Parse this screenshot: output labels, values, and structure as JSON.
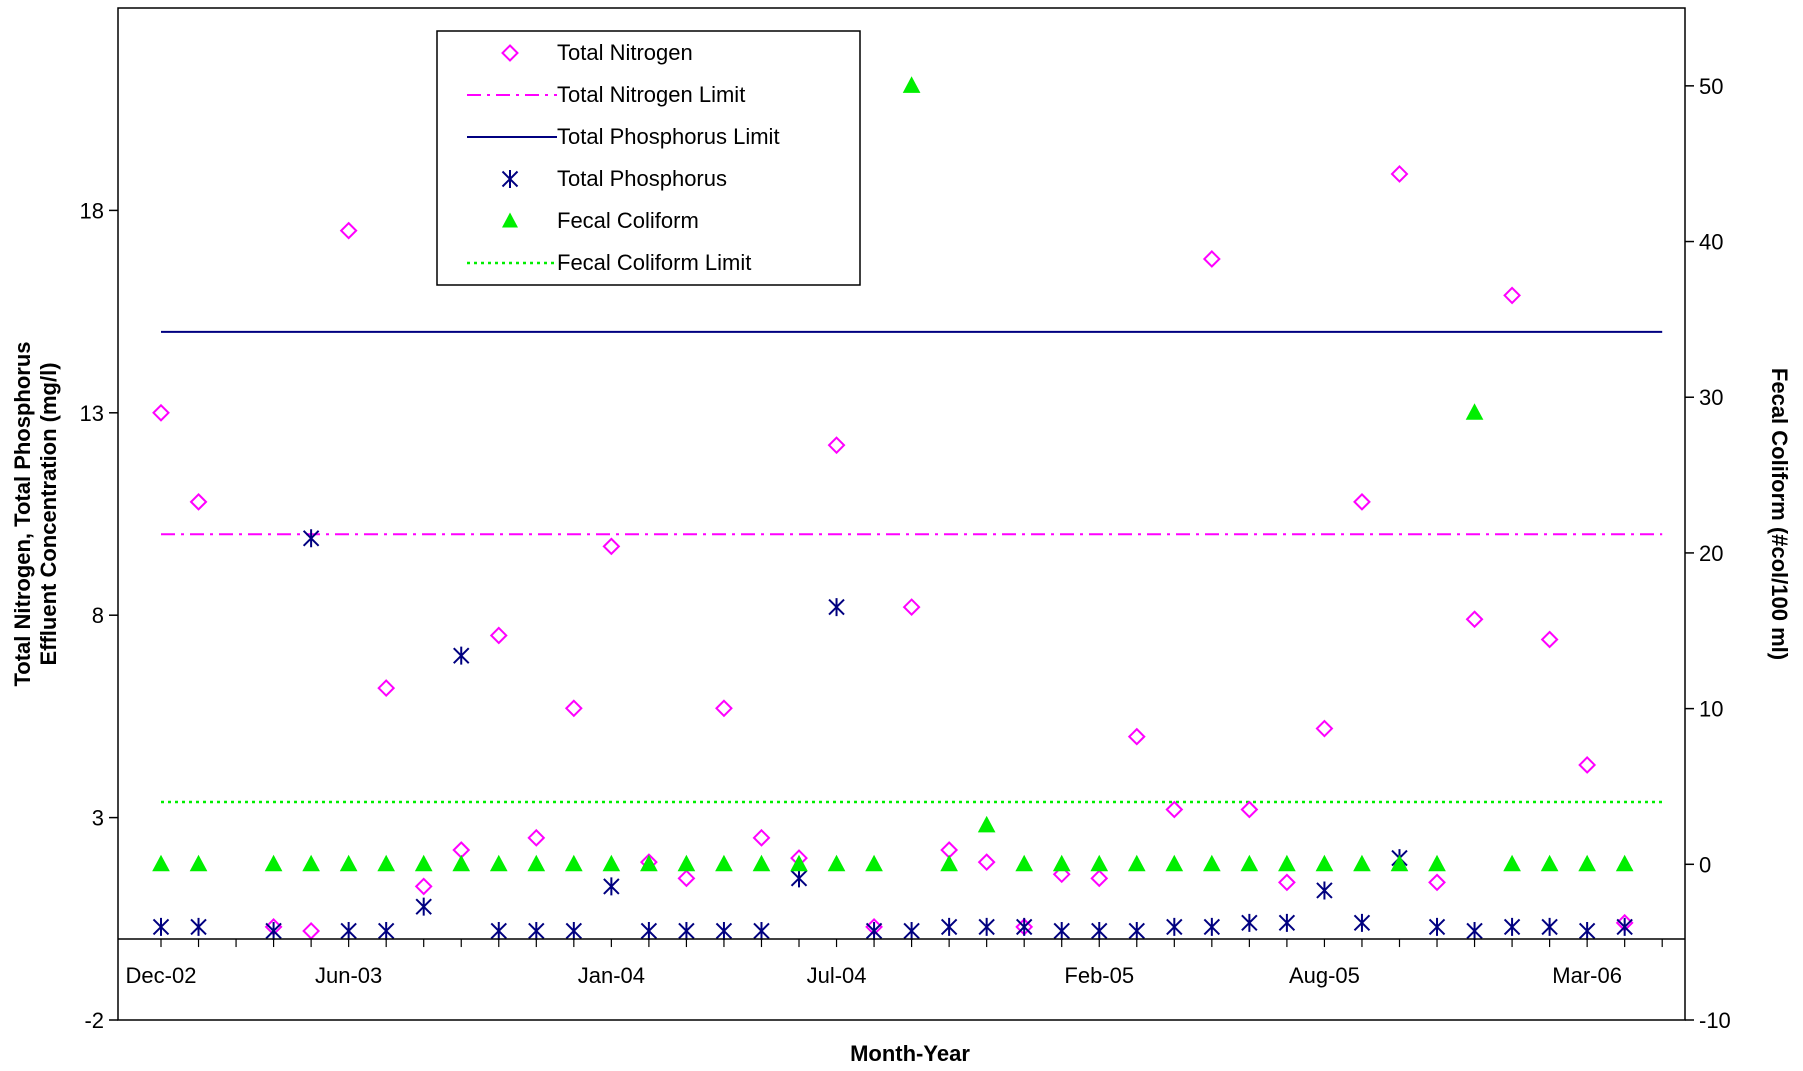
{
  "chart_data": {
    "type": "scatter",
    "title": "",
    "xlabel": "Month-Year",
    "ylabel_left_line1": "Total Nitrogen, Total Phosphorus",
    "ylabel_left_line2": "Effluent Concentration (mg/l)",
    "ylabel_right": "Fecal Coliform (#col/100 ml)",
    "x_tick_labels": [
      "Dec-02",
      "Jun-03",
      "Jan-04",
      "Jul-04",
      "Feb-05",
      "Aug-05",
      "Mar-06"
    ],
    "x_tick_index": [
      0,
      5,
      12,
      18,
      25,
      31,
      38
    ],
    "x_count": 41,
    "y_left_lim": [
      -2,
      23
    ],
    "y_left_ticks": [
      -2,
      3,
      8,
      13,
      18
    ],
    "y_right_lim": [
      -10,
      55
    ],
    "y_right_ticks": [
      -10,
      0,
      10,
      20,
      30,
      40,
      50
    ],
    "legend_position": "top-left",
    "colors": {
      "total_nitrogen": "#ff00ff",
      "total_nitrogen_limit": "#ff00ff",
      "total_phosphorus_limit": "#000080",
      "total_phosphorus": "#000080",
      "fecal_coliform": "#00ee00",
      "fecal_coliform_limit": "#00ee00"
    },
    "series": [
      {
        "name": "Total Nitrogen",
        "marker": "diamond-open",
        "axis": "left",
        "values": [
          13.0,
          10.8,
          null,
          0.3,
          0.2,
          17.5,
          6.2,
          1.3,
          2.2,
          7.5,
          2.5,
          5.7,
          9.7,
          1.9,
          1.5,
          5.7,
          2.5,
          2.0,
          12.2,
          0.3,
          8.2,
          2.2,
          1.9,
          0.3,
          1.6,
          1.5,
          5.0,
          3.2,
          16.8,
          3.2,
          1.4,
          5.2,
          10.8,
          18.9,
          1.4,
          7.9,
          15.9,
          7.4,
          4.3,
          0.4,
          null
        ]
      },
      {
        "name": "Total Phosphorus",
        "marker": "asterisk",
        "axis": "left",
        "values": [
          0.3,
          0.3,
          null,
          0.2,
          9.9,
          0.2,
          0.2,
          0.8,
          7.0,
          0.2,
          0.2,
          0.2,
          1.3,
          0.2,
          0.2,
          0.2,
          0.2,
          1.5,
          8.2,
          0.2,
          0.2,
          0.3,
          0.3,
          0.3,
          0.2,
          0.2,
          0.2,
          0.3,
          0.3,
          0.4,
          0.4,
          1.2,
          0.4,
          2.0,
          0.3,
          0.2,
          0.3,
          0.3,
          0.2,
          0.3,
          null
        ]
      },
      {
        "name": "Fecal Coliform",
        "marker": "triangle-filled",
        "axis": "right",
        "values": [
          0,
          0,
          null,
          0,
          0,
          0,
          0,
          0,
          0,
          0,
          0,
          0,
          0,
          0,
          0,
          0,
          0,
          0,
          0,
          0,
          50,
          0,
          2.5,
          0,
          0,
          0,
          0,
          0,
          0,
          0,
          0,
          0,
          0,
          0,
          0,
          29,
          0,
          0,
          0,
          0,
          null
        ]
      },
      {
        "name": "Total Nitrogen Limit",
        "style": "dash-dot",
        "axis": "left",
        "value": 10.0
      },
      {
        "name": "Total Phosphorus Limit",
        "style": "solid",
        "axis": "left",
        "value": 15.0
      },
      {
        "name": "Fecal Coliform Limit",
        "style": "dotted",
        "axis": "right",
        "value": 4.0
      }
    ]
  }
}
